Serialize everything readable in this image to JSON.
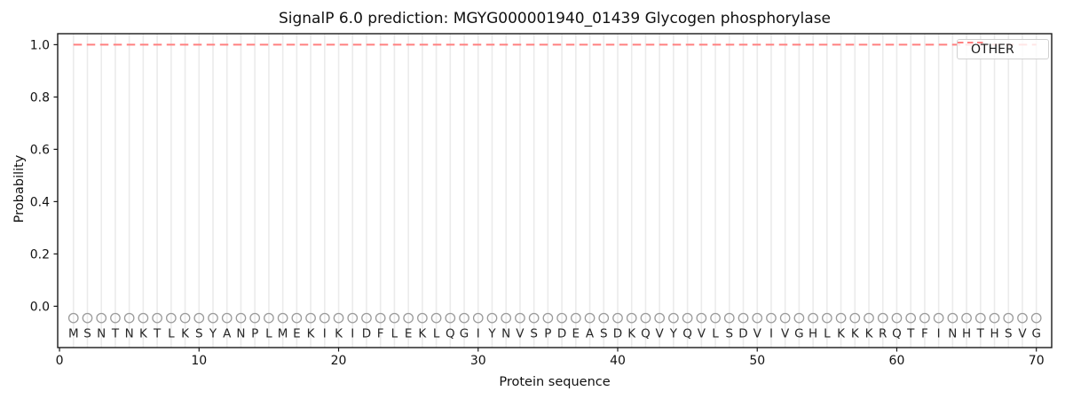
{
  "title": "SignalP 6.0 prediction: MGYG000001940_01439 Glycogen phosphorylase",
  "axes": {
    "xlabel": "Protein sequence",
    "ylabel": "Probability"
  },
  "legend": {
    "label": "OTHER",
    "line_color": "#ff8080",
    "line_style": "dashed",
    "position": "upper right"
  },
  "chart_data": {
    "type": "line",
    "title": "SignalP 6.0 prediction: MGYG000001940_01439 Glycogen phosphorylase",
    "xlabel": "Protein sequence",
    "ylabel": "Probability",
    "xticks": [
      0,
      10,
      20,
      30,
      40,
      50,
      60,
      70
    ],
    "yticks": [
      0.0,
      0.2,
      0.4,
      0.6,
      0.8,
      1.0
    ],
    "xlim": [
      -0.13,
      71.1
    ],
    "ylim": [
      -0.158,
      1.042
    ],
    "grid": {
      "vertical_every_residue": true,
      "color": "#ebebeb"
    },
    "legend_position": "upper right",
    "series": [
      {
        "name": "OTHER",
        "color": "#ff8080",
        "linestyle": "dashed",
        "x": [
          1,
          2,
          3,
          4,
          5,
          6,
          7,
          8,
          9,
          10,
          11,
          12,
          13,
          14,
          15,
          16,
          17,
          18,
          19,
          20,
          21,
          22,
          23,
          24,
          25,
          26,
          27,
          28,
          29,
          30,
          31,
          32,
          33,
          34,
          35,
          36,
          37,
          38,
          39,
          40,
          41,
          42,
          43,
          44,
          45,
          46,
          47,
          48,
          49,
          50,
          51,
          52,
          53,
          54,
          55,
          56,
          57,
          58,
          59,
          60,
          61,
          62,
          63,
          64,
          65,
          66,
          67,
          68,
          69,
          70
        ],
        "y": [
          1.0,
          1.0,
          1.0,
          1.0,
          1.0,
          1.0,
          1.0,
          1.0,
          1.0,
          1.0,
          1.0,
          1.0,
          1.0,
          1.0,
          1.0,
          1.0,
          1.0,
          1.0,
          1.0,
          1.0,
          1.0,
          1.0,
          1.0,
          1.0,
          1.0,
          1.0,
          1.0,
          1.0,
          1.0,
          1.0,
          1.0,
          1.0,
          1.0,
          1.0,
          1.0,
          1.0,
          1.0,
          1.0,
          1.0,
          1.0,
          1.0,
          1.0,
          1.0,
          1.0,
          1.0,
          1.0,
          1.0,
          1.0,
          1.0,
          1.0,
          1.0,
          1.0,
          1.0,
          1.0,
          1.0,
          1.0,
          1.0,
          1.0,
          1.0,
          1.0,
          1.0,
          1.0,
          1.0,
          1.0,
          1.0,
          1.0,
          1.0,
          1.0,
          1.0,
          1.0
        ]
      }
    ],
    "sequence": [
      "M",
      "S",
      "N",
      "T",
      "N",
      "K",
      "T",
      "L",
      "K",
      "S",
      "Y",
      "A",
      "N",
      "P",
      "L",
      "M",
      "E",
      "K",
      "I",
      "K",
      "I",
      "D",
      "F",
      "L",
      "E",
      "K",
      "L",
      "Q",
      "G",
      "I",
      "Y",
      "N",
      "V",
      "S",
      "P",
      "D",
      "E",
      "A",
      "S",
      "D",
      "K",
      "Q",
      "V",
      "Y",
      "Q",
      "V",
      "L",
      "S",
      "D",
      "V",
      "I",
      "V",
      "G",
      "H",
      "L",
      "K",
      "K",
      "K",
      "R",
      "Q",
      "T",
      "F",
      "I",
      "N",
      "H",
      "T",
      "H",
      "S",
      "V",
      "G"
    ],
    "sequence_markers": {
      "shape": "open-circle",
      "y": -0.045,
      "color": "#9b9b9b"
    },
    "sequence_label_y": -0.1,
    "sequence_label_color": "#262626"
  }
}
